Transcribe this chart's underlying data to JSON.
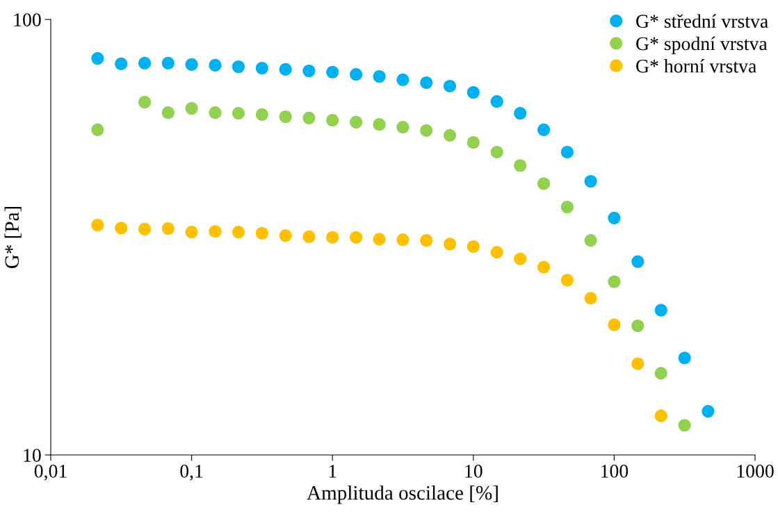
{
  "chart_data": {
    "type": "scatter",
    "xlabel": "Amplituda oscilace [%]",
    "ylabel": "G* [Pa]",
    "log": "xy",
    "grid": false,
    "legend": "top right",
    "marker": "circle",
    "x": [
      0.0215,
      0.0316,
      0.0464,
      0.0681,
      0.1,
      0.147,
      0.215,
      0.316,
      0.464,
      0.681,
      1,
      1.47,
      2.15,
      3.16,
      4.64,
      6.81,
      10,
      14.7,
      21.5,
      31.6,
      46.4,
      68.1,
      100,
      147,
      215,
      316,
      464
    ],
    "xlim": [
      0.01,
      1000
    ],
    "xticks": [
      {
        "value": 0.01,
        "label": "0,01"
      },
      {
        "value": 0.1,
        "label": "0,1"
      },
      1,
      10,
      100,
      1000
    ],
    "ylim": [
      10,
      100
    ],
    "yticks": [
      10,
      100
    ],
    "series": [
      {
        "name": "G* střední vrstva",
        "color": "#00b0f0",
        "values": [
          81.4,
          79.1,
          79.4,
          79.4,
          78.8,
          78.5,
          77.9,
          77.3,
          76.8,
          76.2,
          75.7,
          74.8,
          74.0,
          72.7,
          71.6,
          70.3,
          68.0,
          64.8,
          60.9,
          55.8,
          49.6,
          42.5,
          35.0,
          27.8,
          21.5,
          16.7,
          12.6
        ]
      },
      {
        "name": "G* spodní vrstva",
        "color": "#92d050",
        "values": [
          55.8,
          null,
          64.6,
          61.1,
          62.5,
          61.1,
          60.9,
          60.5,
          59.8,
          59.4,
          58.7,
          58.1,
          57.4,
          56.6,
          55.6,
          54.2,
          52.2,
          49.6,
          46.2,
          42.0,
          37.1,
          31.1,
          25.0,
          19.8,
          15.4,
          11.7,
          null
        ]
      },
      {
        "name": "G* horní vrstva",
        "color": "#ffc000",
        "values": [
          33.7,
          33.2,
          33.0,
          33.1,
          32.5,
          32.6,
          32.5,
          32.3,
          31.9,
          31.7,
          31.6,
          31.6,
          31.3,
          31.2,
          31.1,
          30.5,
          30.1,
          29.2,
          28.2,
          27.0,
          25.2,
          22.9,
          19.9,
          16.2,
          12.3,
          null,
          null
        ]
      }
    ]
  }
}
